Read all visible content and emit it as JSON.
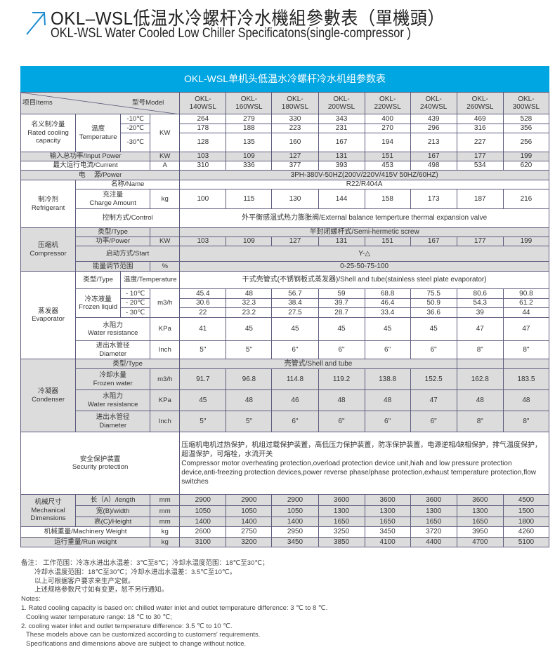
{
  "header": {
    "title": "OKL–WSL低温水冷螺杆冷水機組參數表（單機頭）",
    "subtitle": "OKL-WSL Water Cooled Low Chiller Specificatons(single-compressor )",
    "accent_color": "#00a6e2",
    "icon": "arrow-up-right-icon"
  },
  "table": {
    "banner": "OKL-WSL单机头低温水冷螺杆冷水机组参数表",
    "items_label": "项目Items",
    "model_label": "型号Model",
    "models": [
      "OKL-\n140WSL",
      "OKL-\n160WSL",
      "OKL-\n180WSL",
      "OKL-\n200WSL",
      "OKL-\n220WSL",
      "OKL-\n240WSL",
      "OKL-\n260WSL",
      "OKL-\n300WSL"
    ],
    "rated_cooling": {
      "label": "名义制冷量\nRated cooling\ncapacity",
      "temp_label": "温度\nTemperature",
      "unit": "KW",
      "t1": "-10℃",
      "t2": "-20℃",
      "t3": "-30℃",
      "v1": [
        "264",
        "279",
        "330",
        "343",
        "400",
        "439",
        "469",
        "528"
      ],
      "v2": [
        "178",
        "188",
        "223",
        "231",
        "270",
        "296",
        "316",
        "356"
      ],
      "v3": [
        "128",
        "135",
        "160",
        "167",
        "194",
        "213",
        "227",
        "256"
      ]
    },
    "input_power": {
      "label": "输入总功率/Input Power",
      "unit": "KW",
      "values": [
        "103",
        "109",
        "127",
        "131",
        "151",
        "167",
        "177",
        "199"
      ]
    },
    "current": {
      "label": "最大运行电流/Current",
      "unit": "A",
      "values": [
        "310",
        "336",
        "377",
        "393",
        "453",
        "498",
        "534",
        "620"
      ]
    },
    "power": {
      "label": "电　 源/Power",
      "value": "3PH-380V-50HZ(200V/220V/415V  50HZ/60HZ)"
    },
    "refrigerant": {
      "label": "制冷剂\nRefrigerant",
      "name_label": "名称/Name",
      "name_value": "R22/R404A",
      "charge_label": "充注量\nCharge Amount",
      "charge_unit": "kg",
      "charge_values": [
        "100",
        "115",
        "130",
        "144",
        "158",
        "173",
        "187",
        "216"
      ],
      "control_label": "控制方式/Control",
      "control_value": "外平衡感温式热力膨胀阀/External balance temperture thermal expansion valve"
    },
    "compressor": {
      "label": "压缩机\nCompressor",
      "type_label": "类型/Type",
      "type_value": "半封闭螺杆式/Semi-hermetic screw",
      "power_label": "功率/Power",
      "power_unit": "KW",
      "power_values": [
        "103",
        "109",
        "127",
        "131",
        "151",
        "167",
        "177",
        "199"
      ],
      "start_label": "启动方式/Start",
      "start_value": "Y-△",
      "energy_label": "能量调节范围",
      "energy_unit": "%",
      "energy_value": "0-25-50-75-100"
    },
    "evaporator": {
      "label": "蒸发器\nEvaporator",
      "type_label": "类型/Type",
      "temp_label": "温度/Temperature",
      "type_value": "干式壳管式(不锈钢板式蒸发器)/Shell and tube(stainless steel plate evaporator)",
      "flow_label": "冷冻液量\nFrozen liquid",
      "flow_unit": "m3/h",
      "t1": "- 10℃",
      "t2": "- 20℃",
      "t3": "- 30℃",
      "f1": [
        "45.4",
        "48",
        "56.7",
        "59",
        "68.8",
        "75.5",
        "80.6",
        "90.8"
      ],
      "f2": [
        "30.6",
        "32.3",
        "38.4",
        "39.7",
        "46.4",
        "50.9",
        "54.3",
        "61.2"
      ],
      "f3": [
        "22",
        "23.2",
        "27.5",
        "28.7",
        "33.4",
        "36.6",
        "39",
        "44"
      ],
      "resist_label": "水阻力\nWater resistance",
      "resist_unit": "KPa",
      "resist_values": [
        "41",
        "45",
        "45",
        "45",
        "45",
        "45",
        "47",
        "47"
      ],
      "dia_label": "进出水管径\nDiameter",
      "dia_unit": "Inch",
      "dia_values": [
        "5\"",
        "5\"",
        "6\"",
        "6\"",
        "6\"",
        "6\"",
        "8\"",
        "8\""
      ]
    },
    "condenser": {
      "label": "冷凝器\nCondenser",
      "type_label": "类型/Type",
      "type_value": "壳管式/Shell and tube",
      "flow_label": "冷却水量\nFrozen water",
      "flow_unit": "m3/h",
      "flow_values": [
        "91.7",
        "96.8",
        "114.8",
        "119.2",
        "138.8",
        "152.5",
        "162.8",
        "183.5"
      ],
      "resist_label": "水阻力\nWater resistance",
      "resist_unit": "KPa",
      "resist_values": [
        "45",
        "48",
        "46",
        "48",
        "48",
        "47",
        "48",
        "48"
      ],
      "dia_label": "进出水管径\nDiameter",
      "dia_unit": "Inch",
      "dia_values": [
        "5\"",
        "5\"",
        "6\"",
        "6\"",
        "6\"",
        "6\"",
        "8\"",
        "8\""
      ]
    },
    "security": {
      "label": "安全保护装置\nSecurity protection",
      "value_cn": "压缩机电机过热保护，机组过载保护装置，高低压力保护装置，防冻保护装置，电源逆相/缺相保护，排气温度保护，超温保护，可熔栓，水流开关",
      "value_en": "Compressor motor overheating protection,overload protection device unit,hiah and low pressure protection device,anti-freezing protection devices,power reverse phase/phase protection,exhaust temperature protection,flow switches"
    },
    "dimensions": {
      "label": "机械尺寸\nMechanical\nDimensions",
      "length_label": "长（A）/length",
      "width_label": "宽(B)/width",
      "height_label": "高(C)/Height",
      "unit": "mm",
      "length": [
        "2900",
        "2900",
        "2900",
        "3600",
        "3600",
        "3600",
        "3600",
        "4500"
      ],
      "width": [
        "1050",
        "1050",
        "1050",
        "1300",
        "1300",
        "1300",
        "1300",
        "1500"
      ],
      "height": [
        "1400",
        "1400",
        "1400",
        "1650",
        "1650",
        "1650",
        "1650",
        "1800"
      ]
    },
    "machinery_weight": {
      "label": "机械重量/Machinery Weight",
      "unit": "kg",
      "values": [
        "2600",
        "2750",
        "2950",
        "3250",
        "3450",
        "3720",
        "3950",
        "4260"
      ]
    },
    "run_weight": {
      "label": "运行重量/Run weight",
      "unit": "kg",
      "values": [
        "3100",
        "3200",
        "3450",
        "3850",
        "4100",
        "4400",
        "4700",
        "5100"
      ]
    }
  },
  "notes": {
    "cn": [
      "备注：  工作范围：冷冻水进出水温差：3℃至8℃；冷却水温度范围：18℃至30℃；",
      "冷却水温度范围：18℃至30℃；冷却水进出水温差：3.5℃至10℃。",
      "以上可根据客户要求来生产定做。",
      "上述规格参数尺寸如有变更，恕不另行通知。"
    ],
    "en": [
      "Notes:",
      "1. Rated cooling capacity is based on: chilled water inlet and outlet temperature difference: 3 ℃ to 8 ℃.",
      "Cooling water temperature range: 18 ℃ to 30 ℃;",
      "2. cooling water inlet and outlet temperature difference: 3.5 ℃ to 10 ℃.",
      "These models above can be customized according to customers′  requirements.",
      "Specifications and dimensions above are subject to change without notice."
    ]
  }
}
